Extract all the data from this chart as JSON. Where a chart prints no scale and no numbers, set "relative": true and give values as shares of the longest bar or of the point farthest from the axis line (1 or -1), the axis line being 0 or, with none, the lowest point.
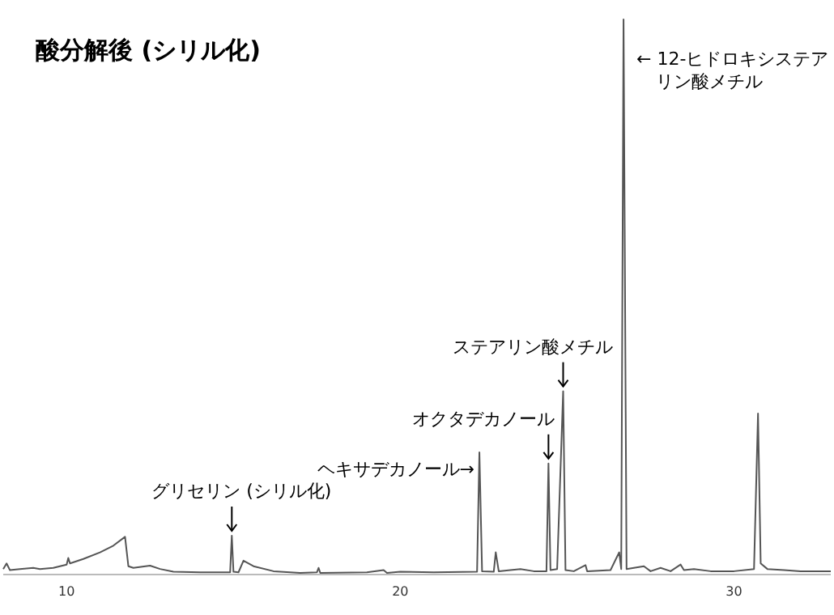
{
  "chart_data": {
    "type": "line",
    "title": "酸分解後 (シリル化)",
    "relative": true,
    "color": "#555555",
    "xlim": [
      8.1,
      32.9
    ],
    "xticks": [
      10,
      20,
      30
    ],
    "annotations": [
      {
        "text": "グリセリン (シリル化)",
        "x": 14.95,
        "y": 0.07
      },
      {
        "text": "ヘキサデカノール→",
        "x": 22.37,
        "y": 0.22
      },
      {
        "text": "オクタデカノール",
        "x": 24.44,
        "y": 0.2
      },
      {
        "text": "ステアリン酸メチル",
        "x": 24.88,
        "y": 0.33
      },
      {
        "text": "← 12-ヒドロキシステアリン酸メチル",
        "x": 26.69,
        "y": 1.0
      }
    ],
    "x": [
      8.1,
      8.2,
      8.3,
      8.6,
      9.0,
      9.2,
      9.6,
      10.0,
      10.05,
      10.1,
      10.5,
      11.0,
      11.4,
      11.75,
      11.85,
      12.0,
      12.5,
      12.8,
      13.2,
      14.0,
      14.9,
      14.95,
      15.0,
      15.15,
      15.3,
      15.6,
      16.2,
      17.0,
      17.5,
      17.55,
      17.6,
      19.0,
      19.5,
      19.6,
      20.0,
      21.0,
      22.3,
      22.37,
      22.45,
      22.8,
      22.86,
      22.95,
      23.3,
      23.6,
      24.0,
      24.38,
      24.44,
      24.5,
      24.7,
      24.88,
      24.95,
      25.2,
      25.55,
      25.6,
      26.3,
      26.56,
      26.62,
      26.69,
      26.78,
      27.0,
      27.3,
      27.5,
      27.8,
      28.1,
      28.4,
      28.5,
      28.8,
      29.3,
      30.0,
      30.6,
      30.72,
      30.8,
      31.0,
      31.5,
      32.0,
      32.9
    ],
    "values": [
      0.01,
      0.02,
      0.008,
      0.01,
      0.012,
      0.01,
      0.012,
      0.018,
      0.03,
      0.02,
      0.028,
      0.04,
      0.052,
      0.068,
      0.015,
      0.012,
      0.016,
      0.01,
      0.005,
      0.004,
      0.004,
      0.07,
      0.005,
      0.004,
      0.025,
      0.015,
      0.006,
      0.003,
      0.004,
      0.012,
      0.003,
      0.004,
      0.008,
      0.003,
      0.005,
      0.004,
      0.005,
      0.22,
      0.006,
      0.005,
      0.04,
      0.006,
      0.008,
      0.01,
      0.006,
      0.006,
      0.2,
      0.008,
      0.01,
      0.33,
      0.008,
      0.006,
      0.017,
      0.006,
      0.008,
      0.04,
      0.01,
      1.0,
      0.01,
      0.012,
      0.015,
      0.006,
      0.012,
      0.006,
      0.018,
      0.008,
      0.01,
      0.006,
      0.006,
      0.01,
      0.29,
      0.02,
      0.01,
      0.008,
      0.006,
      0.006
    ]
  }
}
